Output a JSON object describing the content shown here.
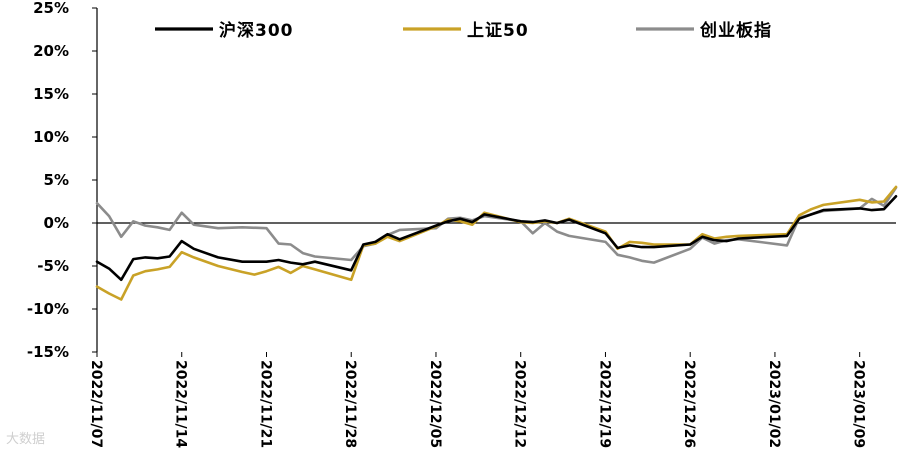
{
  "chart_data": {
    "type": "line",
    "title": "",
    "xlabel": "",
    "ylabel": "",
    "ylim": [
      -15,
      25
    ],
    "yticks": [
      25,
      20,
      15,
      10,
      5,
      0,
      -5,
      -10,
      -15
    ],
    "ytick_labels": [
      "25%",
      "20%",
      "15%",
      "10%",
      "5%",
      "0%",
      "-5%",
      "-10%",
      "-15%"
    ],
    "xlim": [
      "2022-11-07",
      "2023-01-12"
    ],
    "xticks": [
      "2022-11-07",
      "2022-11-14",
      "2022-11-21",
      "2022-11-28",
      "2022-12-05",
      "2022-12-12",
      "2022-12-19",
      "2022-12-26",
      "2023-01-02",
      "2023-01-09"
    ],
    "xtick_labels": [
      "2022/11/07",
      "2022/11/14",
      "2022/11/21",
      "2022/11/28",
      "2022/12/05",
      "2022/12/12",
      "2022/12/19",
      "2022/12/26",
      "2023/01/02",
      "2023/01/09"
    ],
    "grid": false,
    "legend_position": "top",
    "series": [
      {
        "name": "沪深300",
        "color": "#000000",
        "points": [
          [
            "2022-11-07",
            -4.5
          ],
          [
            "2022-11-08",
            -5.3
          ],
          [
            "2022-11-09",
            -6.6
          ],
          [
            "2022-11-10",
            -4.2
          ],
          [
            "2022-11-11",
            -4.0
          ],
          [
            "2022-11-12",
            -4.1
          ],
          [
            "2022-11-13",
            -3.9
          ],
          [
            "2022-11-14",
            -2.1
          ],
          [
            "2022-11-15",
            -3.0
          ],
          [
            "2022-11-17",
            -4.0
          ],
          [
            "2022-11-19",
            -4.5
          ],
          [
            "2022-11-21",
            -4.5
          ],
          [
            "2022-11-22",
            -4.3
          ],
          [
            "2022-11-23",
            -4.6
          ],
          [
            "2022-11-24",
            -4.8
          ],
          [
            "2022-11-25",
            -4.5
          ],
          [
            "2022-11-28",
            -5.5
          ],
          [
            "2022-11-29",
            -2.5
          ],
          [
            "2022-11-30",
            -2.2
          ],
          [
            "2022-12-01",
            -1.3
          ],
          [
            "2022-12-02",
            -1.9
          ],
          [
            "2022-12-05",
            -0.3
          ],
          [
            "2022-12-06",
            0.2
          ],
          [
            "2022-12-07",
            0.5
          ],
          [
            "2022-12-08",
            0.1
          ],
          [
            "2022-12-09",
            1.0
          ],
          [
            "2022-12-12",
            0.2
          ],
          [
            "2022-12-13",
            0.1
          ],
          [
            "2022-12-14",
            0.3
          ],
          [
            "2022-12-15",
            0.0
          ],
          [
            "2022-12-16",
            0.4
          ],
          [
            "2022-12-19",
            -1.2
          ],
          [
            "2022-12-20",
            -2.9
          ],
          [
            "2022-12-21",
            -2.6
          ],
          [
            "2022-12-22",
            -2.8
          ],
          [
            "2022-12-23",
            -2.8
          ],
          [
            "2022-12-26",
            -2.5
          ],
          [
            "2022-12-27",
            -1.6
          ],
          [
            "2022-12-28",
            -2.0
          ],
          [
            "2022-12-29",
            -2.1
          ],
          [
            "2022-12-30",
            -1.8
          ],
          [
            "2023-01-03",
            -1.5
          ],
          [
            "2023-01-04",
            0.5
          ],
          [
            "2023-01-05",
            1.0
          ],
          [
            "2023-01-06",
            1.5
          ],
          [
            "2023-01-09",
            1.7
          ],
          [
            "2023-01-10",
            1.5
          ],
          [
            "2023-01-11",
            1.6
          ],
          [
            "2023-01-12",
            3.1
          ]
        ]
      },
      {
        "name": "上证50",
        "color": "#c9a227",
        "points": [
          [
            "2022-11-07",
            -7.4
          ],
          [
            "2022-11-08",
            -8.2
          ],
          [
            "2022-11-09",
            -8.9
          ],
          [
            "2022-11-10",
            -6.1
          ],
          [
            "2022-11-11",
            -5.6
          ],
          [
            "2022-11-12",
            -5.4
          ],
          [
            "2022-11-13",
            -5.1
          ],
          [
            "2022-11-14",
            -3.4
          ],
          [
            "2022-11-15",
            -4.0
          ],
          [
            "2022-11-17",
            -5.0
          ],
          [
            "2022-11-19",
            -5.7
          ],
          [
            "2022-11-20",
            -6.0
          ],
          [
            "2022-11-21",
            -5.6
          ],
          [
            "2022-11-22",
            -5.1
          ],
          [
            "2022-11-23",
            -5.8
          ],
          [
            "2022-11-24",
            -5.0
          ],
          [
            "2022-11-25",
            -5.4
          ],
          [
            "2022-11-28",
            -6.6
          ],
          [
            "2022-11-29",
            -2.6
          ],
          [
            "2022-11-30",
            -2.4
          ],
          [
            "2022-12-01",
            -1.6
          ],
          [
            "2022-12-02",
            -2.1
          ],
          [
            "2022-12-05",
            -0.4
          ],
          [
            "2022-12-06",
            0.4
          ],
          [
            "2022-12-07",
            0.2
          ],
          [
            "2022-12-08",
            -0.2
          ],
          [
            "2022-12-09",
            1.2
          ],
          [
            "2022-12-12",
            0.1
          ],
          [
            "2022-12-13",
            0.0
          ],
          [
            "2022-12-14",
            0.2
          ],
          [
            "2022-12-15",
            0.0
          ],
          [
            "2022-12-16",
            0.5
          ],
          [
            "2022-12-19",
            -1.0
          ],
          [
            "2022-12-20",
            -3.0
          ],
          [
            "2022-12-21",
            -2.2
          ],
          [
            "2022-12-22",
            -2.3
          ],
          [
            "2022-12-23",
            -2.5
          ],
          [
            "2022-12-26",
            -2.5
          ],
          [
            "2022-12-27",
            -1.3
          ],
          [
            "2022-12-28",
            -1.8
          ],
          [
            "2022-12-29",
            -1.6
          ],
          [
            "2022-12-30",
            -1.5
          ],
          [
            "2023-01-03",
            -1.3
          ],
          [
            "2023-01-04",
            0.9
          ],
          [
            "2023-01-05",
            1.6
          ],
          [
            "2023-01-06",
            2.1
          ],
          [
            "2023-01-09",
            2.7
          ],
          [
            "2023-01-10",
            2.4
          ],
          [
            "2023-01-11",
            2.5
          ],
          [
            "2023-01-12",
            4.2
          ]
        ]
      },
      {
        "name": "创业板指",
        "color": "#8c8c8c",
        "points": [
          [
            "2022-11-07",
            2.3
          ],
          [
            "2022-11-08",
            0.8
          ],
          [
            "2022-11-09",
            -1.6
          ],
          [
            "2022-11-10",
            0.2
          ],
          [
            "2022-11-11",
            -0.3
          ],
          [
            "2022-11-12",
            -0.5
          ],
          [
            "2022-11-13",
            -0.8
          ],
          [
            "2022-11-14",
            1.2
          ],
          [
            "2022-11-15",
            -0.2
          ],
          [
            "2022-11-17",
            -0.6
          ],
          [
            "2022-11-19",
            -0.5
          ],
          [
            "2022-11-21",
            -0.6
          ],
          [
            "2022-11-22",
            -2.4
          ],
          [
            "2022-11-23",
            -2.5
          ],
          [
            "2022-11-24",
            -3.5
          ],
          [
            "2022-11-25",
            -3.9
          ],
          [
            "2022-11-28",
            -4.3
          ],
          [
            "2022-11-29",
            -2.7
          ],
          [
            "2022-11-30",
            -2.4
          ],
          [
            "2022-12-01",
            -1.4
          ],
          [
            "2022-12-02",
            -0.8
          ],
          [
            "2022-12-05",
            -0.6
          ],
          [
            "2022-12-06",
            0.5
          ],
          [
            "2022-12-07",
            0.6
          ],
          [
            "2022-12-08",
            0.3
          ],
          [
            "2022-12-09",
            0.8
          ],
          [
            "2022-12-12",
            0.2
          ],
          [
            "2022-12-13",
            -1.2
          ],
          [
            "2022-12-14",
            0.0
          ],
          [
            "2022-12-15",
            -1.0
          ],
          [
            "2022-12-16",
            -1.5
          ],
          [
            "2022-12-19",
            -2.2
          ],
          [
            "2022-12-20",
            -3.7
          ],
          [
            "2022-12-21",
            -4.0
          ],
          [
            "2022-12-22",
            -4.4
          ],
          [
            "2022-12-23",
            -4.6
          ],
          [
            "2022-12-26",
            -3.0
          ],
          [
            "2022-12-27",
            -1.7
          ],
          [
            "2022-12-28",
            -2.4
          ],
          [
            "2022-12-29",
            -2.0
          ],
          [
            "2022-12-30",
            -1.9
          ],
          [
            "2023-01-03",
            -2.6
          ],
          [
            "2023-01-04",
            0.6
          ],
          [
            "2023-01-05",
            1.0
          ],
          [
            "2023-01-06",
            1.4
          ],
          [
            "2023-01-09",
            1.7
          ],
          [
            "2023-01-10",
            2.8
          ],
          [
            "2023-01-11",
            2.0
          ],
          [
            "2023-01-12",
            4.1
          ]
        ]
      }
    ]
  },
  "watermark": "大数据"
}
